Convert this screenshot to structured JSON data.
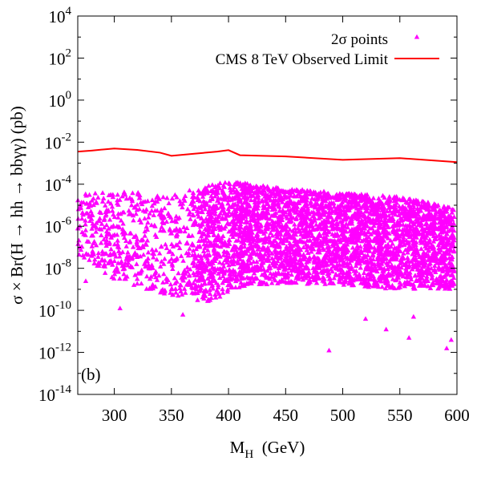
{
  "chart_data": {
    "type": "scatter",
    "title": "",
    "panel_label": "(b)",
    "xlabel": {
      "main": "M",
      "sub": "H",
      "unit": "(GeV)"
    },
    "ylabel": "σ × Br(H → hh → bbγγ) (pb)",
    "xlim": [
      268,
      600
    ],
    "ylim_log10": [
      -14,
      4
    ],
    "yscale": "log",
    "x_ticks": [
      300,
      350,
      400,
      450,
      500,
      550,
      600
    ],
    "y_tick_exponents": [
      4,
      2,
      0,
      -2,
      -4,
      -6,
      -8,
      -10,
      -12,
      -14
    ],
    "grid": false,
    "legend_position": "top-right",
    "series": [
      {
        "name": "2σ points",
        "kind": "scatter",
        "marker": "triangle",
        "color": "#ff00ff",
        "description_of_envelope": {
          "x_range": [
            268,
            598
          ],
          "log10_y_upper": [
            [
              268,
              -4.5
            ],
            [
              300,
              -4.3
            ],
            [
              350,
              -4.5
            ],
            [
              380,
              -4.1
            ],
            [
              400,
              -3.8
            ],
            [
              420,
              -4.0
            ],
            [
              450,
              -4.2
            ],
            [
              500,
              -4.4
            ],
            [
              550,
              -4.6
            ],
            [
              598,
              -5.1
            ]
          ],
          "log10_y_lower": [
            [
              268,
              -7.5
            ],
            [
              300,
              -8.6
            ],
            [
              350,
              -9.3
            ],
            [
              380,
              -9.6
            ],
            [
              400,
              -9.2
            ],
            [
              420,
              -8.8
            ],
            [
              450,
              -8.7
            ],
            [
              500,
              -8.8
            ],
            [
              550,
              -9.0
            ],
            [
              598,
              -9.0
            ]
          ]
        },
        "outliers": [
          [
            488,
            -11.9
          ],
          [
            591,
            -11.8
          ],
          [
            558,
            -11.3
          ],
          [
            595,
            -11.4
          ],
          [
            562,
            -10.3
          ],
          [
            520,
            -10.4
          ],
          [
            538,
            -10.9
          ],
          [
            360,
            -10.2
          ],
          [
            305,
            -9.9
          ],
          [
            275,
            -8.6
          ]
        ]
      },
      {
        "name": "CMS 8 TeV Observed Limit",
        "kind": "line",
        "color": "#ff0000",
        "x": [
          268,
          280,
          300,
          320,
          340,
          350,
          370,
          390,
          400,
          410,
          450,
          500,
          550,
          600
        ],
        "log10_y": [
          -2.45,
          -2.4,
          -2.3,
          -2.37,
          -2.5,
          -2.65,
          -2.55,
          -2.45,
          -2.38,
          -2.62,
          -2.68,
          -2.84,
          -2.76,
          -2.95
        ]
      }
    ]
  }
}
